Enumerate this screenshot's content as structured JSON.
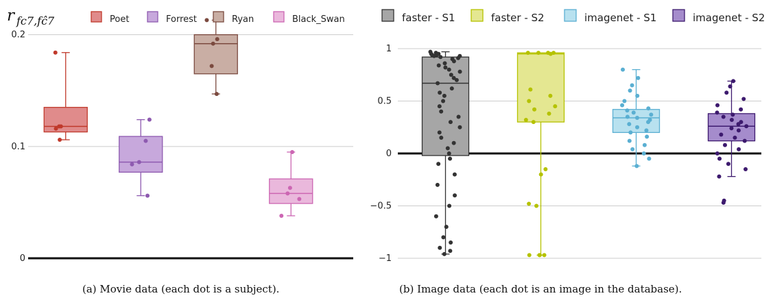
{
  "charts": [
    {
      "ylabel_main": "r",
      "ylabel_sub": "fc7,fĉ7",
      "caption": "(a) Movie data (each dot is a subject).",
      "type": "box",
      "ylim": [
        0,
        0.22
      ],
      "ytick_labels": [
        "0",
        "0.1",
        "0.2"
      ],
      "series": [
        {
          "name": "Poet",
          "color": "#c0392b",
          "fill": "#e08b8b",
          "q1": 0.113,
          "median": 0.118,
          "q3": 0.135,
          "whisker_low": 0.106,
          "whisker_high": 0.184,
          "points": [
            0.184,
            0.118,
            0.116,
            0.118,
            0.106
          ]
        },
        {
          "name": "Forrest",
          "color": "#8e5ab0",
          "fill": "#c7a8dc",
          "q1": 0.077,
          "median": 0.086,
          "q3": 0.109,
          "whisker_low": 0.056,
          "whisker_high": 0.124,
          "points": [
            0.124,
            0.105,
            0.084,
            0.086,
            0.056
          ]
        },
        {
          "name": "Ryan",
          "color": "#7b4a3f",
          "fill": "#c9aea4",
          "q1": 0.165,
          "median": 0.192,
          "q3": 0.2,
          "whisker_low": 0.147,
          "whisker_high": 0.213,
          "points": [
            0.213,
            0.196,
            0.192,
            0.172,
            0.147
          ]
        },
        {
          "name": "Black_Swan",
          "color": "#cc66b3",
          "fill": "#eab8dc",
          "q1": 0.049,
          "median": 0.058,
          "q3": 0.071,
          "whisker_low": 0.038,
          "whisker_high": 0.095,
          "points": [
            0.095,
            0.063,
            0.058,
            0.053,
            0.038
          ]
        }
      ]
    },
    {
      "caption": "(b) Image data (each dot is an image in the database).",
      "type": "box",
      "ylim": [
        -1,
        1
      ],
      "ytick_labels": [
        "1",
        "0.5",
        "0",
        "−0.5",
        "−1"
      ],
      "series": [
        {
          "name": "faster - S1",
          "color": "#333333",
          "fill": "#a6a6a6",
          "q1": -0.02,
          "median": 0.67,
          "q3": 0.92,
          "whisker_low": -0.96,
          "whisker_high": 0.97,
          "points": [
            0.97,
            0.96,
            0.95,
            0.95,
            0.94,
            0.94,
            0.93,
            0.93,
            0.92,
            0.91,
            0.9,
            0.88,
            0.86,
            0.84,
            0.82,
            0.8,
            0.78,
            0.75,
            0.72,
            0.7,
            0.67,
            0.62,
            0.58,
            0.55,
            0.5,
            0.45,
            0.4,
            0.35,
            0.3,
            0.25,
            0.2,
            0.15,
            0.1,
            0.05,
            0.0,
            -0.05,
            -0.1,
            -0.2,
            -0.3,
            -0.4,
            -0.5,
            -0.6,
            -0.7,
            -0.8,
            -0.85,
            -0.9,
            -0.93,
            -0.96
          ]
        },
        {
          "name": "faster - S2",
          "color": "#b5c200",
          "fill": "#e4e791",
          "q1": 0.3,
          "median": 0.95,
          "q3": 0.96,
          "whisker_low": -0.97,
          "whisker_high": 0.96,
          "points": [
            0.96,
            0.96,
            0.96,
            0.96,
            0.95,
            0.61,
            0.55,
            0.5,
            0.45,
            0.42,
            0.38,
            0.32,
            0.3,
            -0.15,
            -0.2,
            -0.48,
            -0.5,
            -0.97,
            -0.97,
            -0.97,
            -0.97
          ]
        },
        {
          "name": "imagenet - S1",
          "color": "#5aafd2",
          "fill": "#b8e1ef",
          "q1": 0.2,
          "median": 0.34,
          "q3": 0.42,
          "whisker_low": -0.12,
          "whisker_high": 0.8,
          "points": [
            0.8,
            0.72,
            0.65,
            0.6,
            0.55,
            0.5,
            0.46,
            0.43,
            0.41,
            0.39,
            0.37,
            0.35,
            0.34,
            0.32,
            0.3,
            0.28,
            0.25,
            0.22,
            0.2,
            0.16,
            0.12,
            0.08,
            0.04,
            0.0,
            -0.05,
            -0.12
          ]
        },
        {
          "name": "imagenet - S2",
          "color": "#3d1a6e",
          "fill": "#a58ccc",
          "q1": 0.12,
          "median": 0.26,
          "q3": 0.38,
          "whisker_low": -0.22,
          "whisker_high": 0.69,
          "points": [
            0.69,
            0.64,
            0.58,
            0.52,
            0.46,
            0.42,
            0.39,
            0.37,
            0.35,
            0.32,
            0.3,
            0.28,
            0.26,
            0.24,
            0.22,
            0.18,
            0.15,
            0.12,
            0.08,
            0.04,
            0.0,
            -0.05,
            -0.1,
            -0.15,
            -0.22,
            -0.45,
            -0.47
          ]
        }
      ]
    }
  ],
  "chart_data": [
    {
      "type": "box",
      "title": "",
      "ylabel": "r_{fc7,fĉ7}",
      "categories": [
        "Poet",
        "Forrest",
        "Ryan",
        "Black_Swan"
      ],
      "ylim": [
        0,
        0.22
      ],
      "grid": true,
      "legend": "top",
      "series": [
        {
          "name": "Poet",
          "q1": 0.113,
          "median": 0.118,
          "q3": 0.135,
          "min": 0.106,
          "max": 0.184
        },
        {
          "name": "Forrest",
          "q1": 0.077,
          "median": 0.086,
          "q3": 0.109,
          "min": 0.056,
          "max": 0.124
        },
        {
          "name": "Ryan",
          "q1": 0.165,
          "median": 0.192,
          "q3": 0.2,
          "min": 0.147,
          "max": 0.213
        },
        {
          "name": "Black_Swan",
          "q1": 0.049,
          "median": 0.058,
          "q3": 0.071,
          "min": 0.038,
          "max": 0.095
        }
      ]
    },
    {
      "type": "box",
      "title": "",
      "categories": [
        "faster - S1",
        "faster - S2",
        "imagenet - S1",
        "imagenet - S2"
      ],
      "ylim": [
        -1,
        1
      ],
      "grid": true,
      "legend": "top",
      "series": [
        {
          "name": "faster - S1",
          "q1": -0.02,
          "median": 0.67,
          "q3": 0.92,
          "min": -0.96,
          "max": 0.97
        },
        {
          "name": "faster - S2",
          "q1": 0.3,
          "median": 0.95,
          "q3": 0.96,
          "min": -0.97,
          "max": 0.96
        },
        {
          "name": "imagenet - S1",
          "q1": 0.2,
          "median": 0.34,
          "q3": 0.42,
          "min": -0.12,
          "max": 0.8
        },
        {
          "name": "imagenet - S2",
          "q1": 0.12,
          "median": 0.26,
          "q3": 0.38,
          "min": -0.22,
          "max": 0.69
        }
      ]
    }
  ]
}
